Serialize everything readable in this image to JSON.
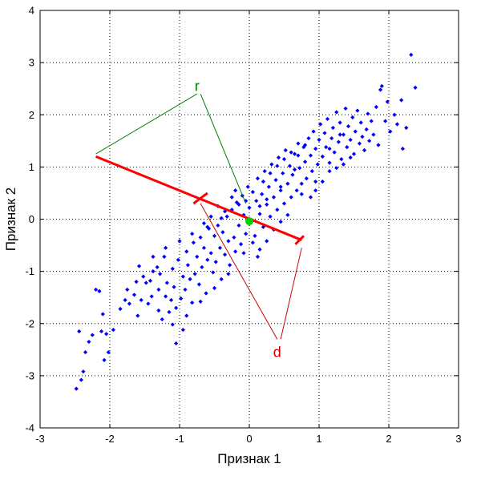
{
  "chart_data": {
    "type": "scatter",
    "title": "",
    "xlabel": "Признак 1",
    "ylabel": "Признак 2",
    "xlim": [
      -3,
      3
    ],
    "ylim": [
      -4,
      4
    ],
    "x_ticks": [
      -3,
      -2,
      -1,
      0,
      1,
      2,
      3
    ],
    "y_ticks": [
      -4,
      -3,
      -2,
      -1,
      0,
      1,
      2,
      3,
      4
    ],
    "x_tick_labels": [
      "-3",
      "-2",
      "-1",
      "0",
      "1",
      "2",
      "3"
    ],
    "y_tick_labels": [
      "-4",
      "-3",
      "-2",
      "-1",
      "0",
      "1",
      "2",
      "3",
      "4"
    ],
    "grid": true,
    "grid_style": "dotted",
    "colors": {
      "points": "#0000ff",
      "segment": "#ff0000",
      "center": "#00cc00",
      "r_annotation": "#008000",
      "d_annotation": "#cc0000"
    },
    "series": [
      {
        "points": [
          [
            -2.48,
            -3.25
          ],
          [
            -2.41,
            -3.08
          ],
          [
            -2.38,
            -2.92
          ],
          [
            -2.44,
            -2.15
          ],
          [
            -2.35,
            -2.55
          ],
          [
            -2.3,
            -2.35
          ],
          [
            -2.25,
            -2.22
          ],
          [
            -2.12,
            -2.15
          ],
          [
            -2.05,
            -2.2
          ],
          [
            -2.08,
            -2.7
          ],
          [
            -2.02,
            -2.55
          ],
          [
            -1.95,
            -2.12
          ],
          [
            -2.2,
            -1.35
          ],
          [
            -2.15,
            -1.38
          ],
          [
            -2.1,
            -1.82
          ],
          [
            -1.85,
            -1.72
          ],
          [
            -1.78,
            -1.55
          ],
          [
            -1.72,
            -1.62
          ],
          [
            -1.65,
            -1.45
          ],
          [
            -1.62,
            -1.2
          ],
          [
            -1.55,
            -1.55
          ],
          [
            -1.52,
            -1.1
          ],
          [
            -1.48,
            -1.22
          ],
          [
            -1.45,
            -1.62
          ],
          [
            -1.42,
            -1.18
          ],
          [
            -1.38,
            -1.0
          ],
          [
            -1.32,
            -0.92
          ],
          [
            -1.3,
            -1.35
          ],
          [
            -1.28,
            -1.05
          ],
          [
            -1.22,
            -0.72
          ],
          [
            -1.2,
            -1.48
          ],
          [
            -1.18,
            -1.22
          ],
          [
            -1.15,
            -1.78
          ],
          [
            -1.12,
            -1.55
          ],
          [
            -1.1,
            -0.95
          ],
          [
            -1.08,
            -1.3
          ],
          [
            -1.05,
            -1.7
          ],
          [
            -1.02,
            -0.78
          ],
          [
            -0.98,
            -1.52
          ],
          [
            -0.95,
            -1.1
          ],
          [
            -0.92,
            -1.35
          ],
          [
            -0.9,
            -0.62
          ],
          [
            -0.88,
            -0.88
          ],
          [
            -0.85,
            -1.15
          ],
          [
            -0.82,
            -1.6
          ],
          [
            -0.8,
            -0.45
          ],
          [
            -0.78,
            -1.05
          ],
          [
            -0.75,
            -0.72
          ],
          [
            -0.72,
            -1.25
          ],
          [
            -0.7,
            -0.35
          ],
          [
            -0.68,
            -0.92
          ],
          [
            -0.65,
            -0.55
          ],
          [
            -0.62,
            -1.42
          ],
          [
            -0.6,
            -0.78
          ],
          [
            -0.58,
            -0.18
          ],
          [
            -0.55,
            -0.65
          ],
          [
            -0.52,
            -1.02
          ],
          [
            -0.5,
            -0.32
          ],
          [
            -0.48,
            -0.82
          ],
          [
            -0.45,
            -0.12
          ],
          [
            -0.42,
            -0.55
          ],
          [
            -0.4,
            -1.15
          ],
          [
            -0.38,
            -0.25
          ],
          [
            -0.35,
            -0.68
          ],
          [
            -0.32,
            0.05
          ],
          [
            -0.3,
            -0.42
          ],
          [
            -0.28,
            -0.88
          ],
          [
            -0.25,
            0.18
          ],
          [
            -0.22,
            -0.35
          ],
          [
            -0.2,
            -0.62
          ],
          [
            -0.18,
            0.32
          ],
          [
            -0.15,
            -0.12
          ],
          [
            -0.12,
            -0.48
          ],
          [
            -0.1,
            0.45
          ],
          [
            -0.08,
            0.08
          ],
          [
            -0.05,
            -0.28
          ],
          [
            -0.02,
            0.62
          ],
          [
            0.0,
            0.22
          ],
          [
            0.02,
            -0.05
          ],
          [
            0.05,
            0.52
          ],
          [
            0.08,
            -0.32
          ],
          [
            0.1,
            0.35
          ],
          [
            0.12,
            0.78
          ],
          [
            0.15,
            0.1
          ],
          [
            0.18,
            0.48
          ],
          [
            0.2,
            -0.15
          ],
          [
            0.22,
            0.92
          ],
          [
            0.25,
            0.28
          ],
          [
            0.28,
            0.62
          ],
          [
            0.3,
            0.05
          ],
          [
            0.32,
            1.05
          ],
          [
            0.35,
            0.42
          ],
          [
            0.38,
            0.75
          ],
          [
            0.4,
            0.18
          ],
          [
            0.42,
            1.18
          ],
          [
            0.45,
            0.55
          ],
          [
            0.48,
            0.88
          ],
          [
            0.5,
            0.3
          ],
          [
            0.52,
            1.32
          ],
          [
            0.55,
            0.68
          ],
          [
            0.58,
            1.02
          ],
          [
            0.6,
            0.42
          ],
          [
            0.62,
            0.85
          ],
          [
            0.65,
            1.25
          ],
          [
            0.68,
            0.55
          ],
          [
            0.7,
            1.45
          ],
          [
            0.72,
            0.98
          ],
          [
            0.75,
            0.68
          ],
          [
            0.78,
            1.38
          ],
          [
            0.8,
            1.1
          ],
          [
            0.82,
            0.78
          ],
          [
            0.85,
            1.55
          ],
          [
            0.88,
            1.22
          ],
          [
            0.9,
            0.92
          ],
          [
            0.92,
            1.68
          ],
          [
            0.95,
            1.35
          ],
          [
            0.98,
            1.05
          ],
          [
            1.0,
            1.52
          ],
          [
            1.02,
            1.82
          ],
          [
            1.05,
            1.2
          ],
          [
            1.08,
            1.65
          ],
          [
            1.1,
            1.38
          ],
          [
            1.12,
            1.92
          ],
          [
            1.15,
            1.08
          ],
          [
            1.18,
            1.55
          ],
          [
            1.2,
            1.75
          ],
          [
            1.22,
            1.28
          ],
          [
            1.25,
            2.05
          ],
          [
            1.28,
            1.48
          ],
          [
            1.3,
            1.85
          ],
          [
            1.32,
            1.15
          ],
          [
            1.35,
            1.62
          ],
          [
            1.38,
            2.12
          ],
          [
            1.4,
            1.38
          ],
          [
            1.42,
            1.78
          ],
          [
            1.45,
            1.52
          ],
          [
            1.48,
            1.95
          ],
          [
            1.5,
            1.25
          ],
          [
            1.52,
            1.68
          ],
          [
            1.55,
            2.08
          ],
          [
            1.58,
            1.45
          ],
          [
            1.6,
            1.85
          ],
          [
            1.62,
            1.58
          ],
          [
            1.65,
            1.32
          ],
          [
            1.68,
            1.72
          ],
          [
            1.7,
            2.02
          ],
          [
            1.72,
            1.5
          ],
          [
            1.75,
            1.88
          ],
          [
            1.78,
            1.62
          ],
          [
            1.82,
            2.15
          ],
          [
            1.85,
            1.42
          ],
          [
            1.88,
            2.48
          ],
          [
            1.9,
            2.55
          ],
          [
            1.95,
            1.88
          ],
          [
            1.98,
            2.25
          ],
          [
            2.02,
            1.68
          ],
          [
            2.08,
            2.0
          ],
          [
            2.12,
            1.82
          ],
          [
            2.18,
            2.28
          ],
          [
            2.2,
            1.35
          ],
          [
            2.25,
            1.75
          ],
          [
            2.32,
            3.15
          ],
          [
            2.38,
            2.52
          ],
          [
            1.15,
            0.92
          ],
          [
            1.05,
            0.72
          ],
          [
            0.95,
            0.55
          ],
          [
            0.88,
            0.42
          ],
          [
            1.25,
            0.98
          ],
          [
            1.35,
            1.05
          ],
          [
            1.45,
            1.18
          ],
          [
            -0.05,
            0.35
          ],
          [
            -0.15,
            0.28
          ],
          [
            -0.25,
            0.42
          ],
          [
            -0.35,
            0.15
          ],
          [
            -0.45,
            0.25
          ],
          [
            -0.55,
            0.05
          ],
          [
            -0.65,
            -0.08
          ],
          [
            -0.2,
            0.55
          ],
          [
            0.05,
            -0.45
          ],
          [
            0.15,
            -0.58
          ],
          [
            0.25,
            -0.42
          ],
          [
            0.35,
            -0.2
          ],
          [
            0.45,
            -0.05
          ],
          [
            0.55,
            0.08
          ],
          [
            0.12,
            -0.72
          ],
          [
            -0.08,
            -0.65
          ],
          [
            -0.3,
            -1.05
          ],
          [
            -0.5,
            -1.32
          ],
          [
            -0.7,
            -1.58
          ],
          [
            -0.9,
            -1.85
          ],
          [
            -1.1,
            -2.02
          ],
          [
            -1.25,
            -1.92
          ],
          [
            -0.95,
            -2.12
          ],
          [
            -1.05,
            -2.38
          ],
          [
            -1.3,
            -1.75
          ],
          [
            -1.4,
            -1.48
          ],
          [
            -1.6,
            -1.85
          ],
          [
            -1.75,
            -1.35
          ],
          [
            -1.58,
            -0.9
          ],
          [
            -1.38,
            -0.72
          ],
          [
            -1.2,
            -0.55
          ],
          [
            -1.0,
            -0.42
          ],
          [
            -0.82,
            -0.28
          ],
          [
            -0.6,
            -0.15
          ],
          [
            -0.4,
            0.02
          ],
          [
            0.2,
            0.72
          ],
          [
            0.3,
            0.88
          ],
          [
            0.4,
            1.02
          ],
          [
            0.5,
            1.15
          ],
          [
            0.6,
            1.28
          ],
          [
            0.7,
            1.22
          ],
          [
            0.8,
            1.42
          ],
          [
            0.65,
            0.95
          ],
          [
            0.45,
            0.62
          ],
          [
            0.25,
            0.38
          ],
          [
            0.15,
            0.25
          ],
          [
            0.75,
            0.48
          ],
          [
            0.95,
            0.72
          ],
          [
            1.15,
            1.35
          ],
          [
            1.3,
            1.62
          ]
        ]
      }
    ],
    "annotations": {
      "segment": {
        "x1": -2.2,
        "y1": 1.2,
        "x2": 0.75,
        "y2": -0.4
      },
      "center": {
        "x": 0.0,
        "y": -0.04
      },
      "tick_marks": [
        {
          "x1": -0.8,
          "y1": 0.3,
          "x2": -0.6,
          "y2": 0.5
        },
        {
          "x1": 0.66,
          "y1": -0.48,
          "x2": 0.78,
          "y2": -0.32
        }
      ],
      "r": {
        "label": "r",
        "label_pos": {
          "x": -0.75,
          "y": 2.55
        },
        "leader_lines": [
          {
            "x1": -0.75,
            "y1": 2.4,
            "x2": -2.2,
            "y2": 1.25
          },
          {
            "x1": -0.7,
            "y1": 2.4,
            "x2": -0.05,
            "y2": 0.3
          }
        ]
      },
      "d": {
        "label": "d",
        "label_pos": {
          "x": 0.4,
          "y": -2.55
        },
        "leader_lines": [
          {
            "x1": 0.4,
            "y1": -2.3,
            "x2": -0.7,
            "y2": 0.3
          },
          {
            "x1": 0.45,
            "y1": -2.3,
            "x2": 0.75,
            "y2": -0.55
          }
        ]
      }
    }
  }
}
